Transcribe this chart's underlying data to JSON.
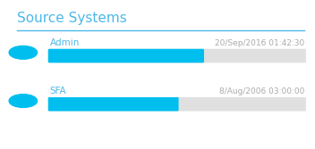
{
  "title": "Source Systems",
  "title_color": "#4db8e8",
  "separator_color": "#4db8e8",
  "background_color": "#ffffff",
  "items": [
    {
      "label": "Admin",
      "datetime": "20/Sep/2016 01:42:30",
      "progress": 0.6,
      "circle_color": "#00bfef",
      "bar_color": "#00bfef",
      "bar_bg_color": "#e0e0e0",
      "label_color": "#4db8e8",
      "datetime_color": "#aaaaaa"
    },
    {
      "label": "SFA",
      "datetime": "8/Aug/2006 03:00:00",
      "progress": 0.5,
      "circle_color": "#00bfef",
      "bar_color": "#00bfef",
      "bar_bg_color": "#e0e0e0",
      "label_color": "#4db8e8",
      "datetime_color": "#aaaaaa"
    }
  ],
  "figsize": [
    3.52,
    1.67
  ],
  "dpi": 100
}
